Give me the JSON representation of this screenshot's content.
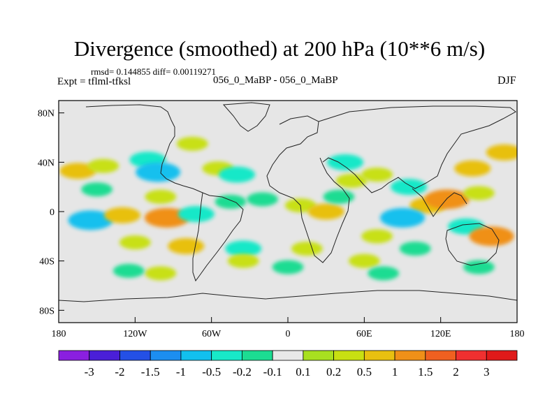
{
  "header": {
    "title": "Divergence (smoothed) at 200 hPa (10**6 m/s)",
    "stats": "rmsd= 0.144855 diff= 0.00119271",
    "expt": "Expt = tflml-tfksl",
    "case": "056_0_MaBP - 056_0_MaBP",
    "season": "DJF"
  },
  "chart_data": {
    "type": "heatmap",
    "title": "Divergence (smoothed) at 200 hPa (10**6 m/s)",
    "projection": "cylindrical equidistant",
    "x_range": [
      -180,
      180
    ],
    "y_range": [
      -90,
      90
    ],
    "x_ticks": [
      {
        "value": -180,
        "label": "180"
      },
      {
        "value": -120,
        "label": "120W"
      },
      {
        "value": -60,
        "label": "60W"
      },
      {
        "value": 0,
        "label": "0"
      },
      {
        "value": 60,
        "label": "60E"
      },
      {
        "value": 120,
        "label": "120E"
      },
      {
        "value": 180,
        "label": "180"
      }
    ],
    "y_ticks": [
      {
        "value": 80,
        "label": "80N"
      },
      {
        "value": 40,
        "label": "40N"
      },
      {
        "value": 0,
        "label": "0"
      },
      {
        "value": -40,
        "label": "40S"
      },
      {
        "value": -80,
        "label": "80S"
      }
    ],
    "colorbar": {
      "labels": [
        "-3",
        "-2",
        "-1.5",
        "-1",
        "-0.5",
        "-0.2",
        "-0.1",
        "0.1",
        "0.2",
        "0.5",
        "1",
        "1.5",
        "2",
        "3"
      ],
      "colors": [
        "#8a1fe0",
        "#4a1fd8",
        "#2450e6",
        "#1c8ef0",
        "#12c0ee",
        "#18e8c8",
        "#1cdc92",
        "#e8e8e8",
        "#a8e020",
        "#c8e012",
        "#e8c010",
        "#f09018",
        "#f06020",
        "#f03030",
        "#e01a1a"
      ]
    },
    "anomalies": [
      {
        "lon": -165,
        "lat": 33,
        "value": 0.5
      },
      {
        "lon": -145,
        "lat": 37,
        "value": 0.2
      },
      {
        "lon": -110,
        "lat": 42,
        "value": -0.5
      },
      {
        "lon": -102,
        "lat": 32,
        "value": -1
      },
      {
        "lon": -150,
        "lat": 18,
        "value": -0.2
      },
      {
        "lon": -100,
        "lat": 12,
        "value": 0.2
      },
      {
        "lon": -155,
        "lat": -7,
        "value": -1
      },
      {
        "lon": -130,
        "lat": -3,
        "value": 0.5
      },
      {
        "lon": -95,
        "lat": -5,
        "value": 1
      },
      {
        "lon": -72,
        "lat": -2,
        "value": -0.5
      },
      {
        "lon": -75,
        "lat": 55,
        "value": 0.2
      },
      {
        "lon": -55,
        "lat": 35,
        "value": 0.2
      },
      {
        "lon": -40,
        "lat": 30,
        "value": -0.5
      },
      {
        "lon": -20,
        "lat": 10,
        "value": -0.2
      },
      {
        "lon": -45,
        "lat": 8,
        "value": -0.2
      },
      {
        "lon": -120,
        "lat": -25,
        "value": 0.2
      },
      {
        "lon": -80,
        "lat": -28,
        "value": 0.5
      },
      {
        "lon": -35,
        "lat": -30,
        "value": -0.5
      },
      {
        "lon": -35,
        "lat": -40,
        "value": 0.2
      },
      {
        "lon": -100,
        "lat": -50,
        "value": 0.2
      },
      {
        "lon": -125,
        "lat": -48,
        "value": -0.2
      },
      {
        "lon": 10,
        "lat": 5,
        "value": 0.2
      },
      {
        "lon": 30,
        "lat": 0,
        "value": 0.5
      },
      {
        "lon": 40,
        "lat": 12,
        "value": -0.2
      },
      {
        "lon": 45,
        "lat": 40,
        "value": -0.5
      },
      {
        "lon": 50,
        "lat": 25,
        "value": 0.2
      },
      {
        "lon": 70,
        "lat": 30,
        "value": 0.2
      },
      {
        "lon": 95,
        "lat": 20,
        "value": -0.5
      },
      {
        "lon": 110,
        "lat": 5,
        "value": 0.5
      },
      {
        "lon": 125,
        "lat": 10,
        "value": 1
      },
      {
        "lon": 145,
        "lat": 35,
        "value": 0.5
      },
      {
        "lon": 150,
        "lat": 15,
        "value": 0.2
      },
      {
        "lon": 90,
        "lat": -5,
        "value": -1
      },
      {
        "lon": 70,
        "lat": -20,
        "value": 0.2
      },
      {
        "lon": 100,
        "lat": -30,
        "value": -0.2
      },
      {
        "lon": 140,
        "lat": -12,
        "value": -0.5
      },
      {
        "lon": 160,
        "lat": -20,
        "value": 1
      },
      {
        "lon": 150,
        "lat": -45,
        "value": -0.2
      },
      {
        "lon": 170,
        "lat": 48,
        "value": 0.5
      },
      {
        "lon": 60,
        "lat": -40,
        "value": 0.2
      },
      {
        "lon": 75,
        "lat": -50,
        "value": -0.2
      },
      {
        "lon": 15,
        "lat": -30,
        "value": 0.2
      },
      {
        "lon": 0,
        "lat": -45,
        "value": -0.2
      }
    ]
  }
}
